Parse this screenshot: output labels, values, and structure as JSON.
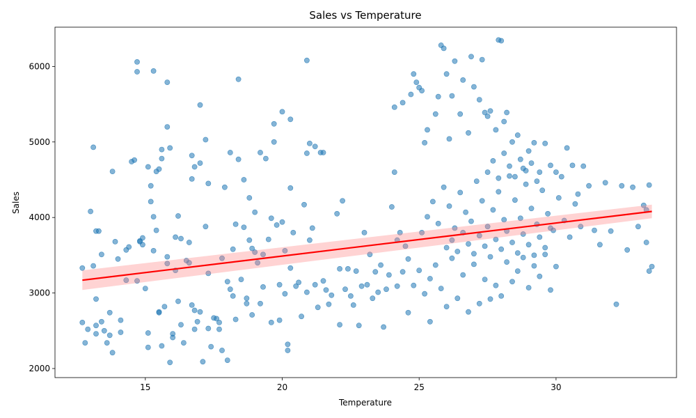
{
  "chart_data": {
    "type": "scatter",
    "title": "Sales vs Temperature",
    "xlabel": "Temperature",
    "ylabel": "Sales",
    "xlim": [
      11.7,
      34.4
    ],
    "ylim": [
      1880,
      6520
    ],
    "xticks": [
      15,
      20,
      25,
      30
    ],
    "yticks": [
      2000,
      3000,
      4000,
      5000,
      6000
    ],
    "grid": false,
    "legend": "none",
    "point_color": "#1f77b4",
    "point_alpha": 0.55,
    "regression": {
      "color": "#ff0000",
      "band_color": "#ff8080",
      "x_range": [
        12.7,
        33.5
      ],
      "y_start": 3170,
      "y_end": 4080,
      "ci_start": [
        3040,
        3300
      ],
      "ci_end": [
        3990,
        4170
      ]
    },
    "points": [
      [
        12.7,
        3330
      ],
      [
        12.8,
        2340
      ],
      [
        12.7,
        2610
      ],
      [
        12.9,
        2520
      ],
      [
        13.0,
        4080
      ],
      [
        13.1,
        4930
      ],
      [
        13.1,
        3360
      ],
      [
        13.2,
        2920
      ],
      [
        13.2,
        3820
      ],
      [
        13.2,
        2460
      ],
      [
        13.3,
        3820
      ],
      [
        13.2,
        2570
      ],
      [
        13.4,
        3510
      ],
      [
        13.4,
        2620
      ],
      [
        13.5,
        2500
      ],
      [
        13.6,
        2340
      ],
      [
        13.7,
        2440
      ],
      [
        13.7,
        2740
      ],
      [
        13.8,
        4610
      ],
      [
        13.8,
        2210
      ],
      [
        13.9,
        3680
      ],
      [
        14.0,
        3450
      ],
      [
        14.1,
        2640
      ],
      [
        14.1,
        2480
      ],
      [
        14.3,
        3570
      ],
      [
        14.3,
        3170
      ],
      [
        14.4,
        3610
      ],
      [
        14.5,
        4740
      ],
      [
        14.6,
        4760
      ],
      [
        14.7,
        3160
      ],
      [
        14.7,
        6060
      ],
      [
        14.7,
        5930
      ],
      [
        14.8,
        3690
      ],
      [
        14.8,
        3680
      ],
      [
        14.9,
        3640
      ],
      [
        14.9,
        3730
      ],
      [
        15.0,
        3060
      ],
      [
        15.1,
        4670
      ],
      [
        15.1,
        2470
      ],
      [
        15.1,
        2280
      ],
      [
        15.2,
        4420
      ],
      [
        15.2,
        4210
      ],
      [
        15.3,
        4010
      ],
      [
        15.3,
        3560
      ],
      [
        15.3,
        5940
      ],
      [
        15.4,
        4610
      ],
      [
        15.4,
        3830
      ],
      [
        15.5,
        2750
      ],
      [
        15.5,
        2740
      ],
      [
        15.5,
        4640
      ],
      [
        15.6,
        4900
      ],
      [
        15.6,
        4780
      ],
      [
        15.6,
        2300
      ],
      [
        15.7,
        2820
      ],
      [
        15.8,
        5790
      ],
      [
        15.8,
        5200
      ],
      [
        15.8,
        3480
      ],
      [
        15.8,
        3390
      ],
      [
        15.9,
        4920
      ],
      [
        15.9,
        2080
      ],
      [
        16.0,
        2460
      ],
      [
        16.0,
        2410
      ],
      [
        16.1,
        3300
      ],
      [
        16.1,
        3740
      ],
      [
        16.2,
        4020
      ],
      [
        16.2,
        2890
      ],
      [
        16.3,
        3720
      ],
      [
        16.3,
        2580
      ],
      [
        16.4,
        2340
      ],
      [
        16.5,
        3430
      ],
      [
        16.6,
        3400
      ],
      [
        16.6,
        3670
      ],
      [
        16.7,
        2840
      ],
      [
        16.7,
        4820
      ],
      [
        16.7,
        4510
      ],
      [
        16.8,
        4670
      ],
      [
        16.8,
        2770
      ],
      [
        16.8,
        2520
      ],
      [
        16.9,
        2620
      ],
      [
        17.0,
        4720
      ],
      [
        17.0,
        5490
      ],
      [
        17.0,
        2750
      ],
      [
        17.1,
        2090
      ],
      [
        17.2,
        3880
      ],
      [
        17.2,
        5030
      ],
      [
        17.3,
        4450
      ],
      [
        17.3,
        3260
      ],
      [
        17.3,
        2530
      ],
      [
        17.4,
        2290
      ],
      [
        17.5,
        2670
      ],
      [
        17.6,
        2660
      ],
      [
        17.7,
        2610
      ],
      [
        17.7,
        2520
      ],
      [
        17.8,
        3460
      ],
      [
        17.8,
        2240
      ],
      [
        17.9,
        4400
      ],
      [
        18.0,
        2110
      ],
      [
        18.0,
        3150
      ],
      [
        18.1,
        4860
      ],
      [
        18.1,
        3050
      ],
      [
        18.2,
        3580
      ],
      [
        18.2,
        2960
      ],
      [
        18.3,
        2650
      ],
      [
        18.3,
        3910
      ],
      [
        18.4,
        4770
      ],
      [
        18.4,
        5830
      ],
      [
        18.5,
        3180
      ],
      [
        18.6,
        3870
      ],
      [
        18.6,
        4500
      ],
      [
        18.7,
        2860
      ],
      [
        18.7,
        2930
      ],
      [
        18.8,
        3700
      ],
      [
        18.8,
        4260
      ],
      [
        18.9,
        2710
      ],
      [
        18.9,
        3590
      ],
      [
        19.0,
        4070
      ],
      [
        19.0,
        3540
      ],
      [
        19.1,
        3400
      ],
      [
        19.2,
        2860
      ],
      [
        19.2,
        4860
      ],
      [
        19.3,
        3080
      ],
      [
        19.3,
        3510
      ],
      [
        19.4,
        4780
      ],
      [
        19.5,
        3710
      ],
      [
        19.6,
        3990
      ],
      [
        19.6,
        2610
      ],
      [
        19.7,
        5000
      ],
      [
        19.7,
        5240
      ],
      [
        19.8,
        3900
      ],
      [
        19.9,
        3110
      ],
      [
        19.9,
        2640
      ],
      [
        20.0,
        3940
      ],
      [
        20.0,
        5400
      ],
      [
        20.1,
        3560
      ],
      [
        20.1,
        2990
      ],
      [
        20.2,
        2240
      ],
      [
        20.2,
        2320
      ],
      [
        20.3,
        3330
      ],
      [
        20.3,
        5300
      ],
      [
        20.3,
        4390
      ],
      [
        20.4,
        3800
      ],
      [
        20.5,
        3090
      ],
      [
        20.6,
        3140
      ],
      [
        20.7,
        2690
      ],
      [
        20.8,
        4170
      ],
      [
        20.9,
        3010
      ],
      [
        20.9,
        6080
      ],
      [
        20.9,
        4850
      ],
      [
        21.0,
        3700
      ],
      [
        21.0,
        4980
      ],
      [
        21.1,
        3860
      ],
      [
        21.2,
        3110
      ],
      [
        21.2,
        4940
      ],
      [
        21.3,
        2810
      ],
      [
        21.4,
        4860
      ],
      [
        21.5,
        4860
      ],
      [
        21.5,
        3160
      ],
      [
        21.6,
        3040
      ],
      [
        21.7,
        2850
      ],
      [
        21.8,
        2970
      ],
      [
        22.0,
        4050
      ],
      [
        22.1,
        2580
      ],
      [
        22.1,
        3320
      ],
      [
        22.2,
        4220
      ],
      [
        22.3,
        3050
      ],
      [
        22.4,
        3320
      ],
      [
        22.5,
        2960
      ],
      [
        22.6,
        2840
      ],
      [
        22.7,
        3290
      ],
      [
        22.8,
        2570
      ],
      [
        22.9,
        3090
      ],
      [
        23.0,
        3800
      ],
      [
        23.1,
        3110
      ],
      [
        23.2,
        3510
      ],
      [
        23.3,
        2930
      ],
      [
        23.4,
        3280
      ],
      [
        23.5,
        3010
      ],
      [
        23.6,
        3370
      ],
      [
        23.7,
        2550
      ],
      [
        23.8,
        3050
      ],
      [
        23.9,
        3240
      ],
      [
        24.0,
        4140
      ],
      [
        24.1,
        4600
      ],
      [
        24.1,
        5460
      ],
      [
        24.2,
        3700
      ],
      [
        24.3,
        3800
      ],
      [
        24.4,
        5520
      ],
      [
        24.5,
        3620
      ],
      [
        24.6,
        2740
      ],
      [
        24.7,
        5630
      ],
      [
        24.8,
        5900
      ],
      [
        24.9,
        5790
      ],
      [
        25.0,
        5720
      ],
      [
        25.1,
        5680
      ],
      [
        25.2,
        4990
      ],
      [
        25.3,
        5160
      ],
      [
        25.4,
        2620
      ],
      [
        25.6,
        5370
      ],
      [
        25.7,
        5600
      ],
      [
        25.8,
        6280
      ],
      [
        25.9,
        6240
      ],
      [
        26.0,
        5900
      ],
      [
        26.1,
        5040
      ],
      [
        26.2,
        5610
      ],
      [
        26.3,
        6070
      ],
      [
        26.5,
        5370
      ],
      [
        26.6,
        5820
      ],
      [
        26.8,
        5120
      ],
      [
        26.9,
        6130
      ],
      [
        27.0,
        5730
      ],
      [
        27.2,
        5560
      ],
      [
        27.3,
        6090
      ],
      [
        27.4,
        5390
      ],
      [
        27.5,
        5340
      ],
      [
        27.6,
        5410
      ],
      [
        27.8,
        5160
      ],
      [
        27.9,
        6350
      ],
      [
        28.0,
        6340
      ],
      [
        28.1,
        5270
      ],
      [
        28.2,
        5390
      ],
      [
        28.4,
        5000
      ],
      [
        28.6,
        5090
      ],
      [
        28.8,
        4650
      ],
      [
        29.0,
        4880
      ],
      [
        29.2,
        4990
      ],
      [
        29.4,
        4600
      ],
      [
        29.6,
        4980
      ],
      [
        29.8,
        4690
      ],
      [
        30.0,
        4600
      ],
      [
        30.2,
        4540
      ],
      [
        30.4,
        4920
      ],
      [
        30.6,
        4690
      ],
      [
        30.8,
        4310
      ],
      [
        31.0,
        4680
      ],
      [
        31.2,
        4420
      ],
      [
        31.4,
        3830
      ],
      [
        31.6,
        3640
      ],
      [
        31.8,
        4460
      ],
      [
        32.0,
        3820
      ],
      [
        32.2,
        2850
      ],
      [
        32.4,
        4420
      ],
      [
        32.6,
        3570
      ],
      [
        32.8,
        4400
      ],
      [
        33.0,
        3880
      ],
      [
        33.2,
        4160
      ],
      [
        33.3,
        3670
      ],
      [
        33.4,
        4430
      ],
      [
        33.5,
        3350
      ],
      [
        33.4,
        3290
      ],
      [
        33.3,
        4100
      ],
      [
        24.2,
        3090
      ],
      [
        24.4,
        3280
      ],
      [
        24.6,
        3450
      ],
      [
        24.8,
        3100
      ],
      [
        25.0,
        3300
      ],
      [
        25.2,
        2990
      ],
      [
        25.4,
        3190
      ],
      [
        25.6,
        3370
      ],
      [
        25.8,
        3060
      ],
      [
        26.0,
        2820
      ],
      [
        26.2,
        3460
      ],
      [
        26.4,
        2930
      ],
      [
        26.6,
        3240
      ],
      [
        26.8,
        2750
      ],
      [
        27.0,
        3380
      ],
      [
        27.2,
        2860
      ],
      [
        27.4,
        3180
      ],
      [
        27.6,
        2920
      ],
      [
        27.8,
        3100
      ],
      [
        28.0,
        2960
      ],
      [
        28.2,
        3410
      ],
      [
        28.4,
        3150
      ],
      [
        28.6,
        3290
      ],
      [
        28.8,
        3470
      ],
      [
        29.0,
        3070
      ],
      [
        29.2,
        3360
      ],
      [
        29.4,
        3220
      ],
      [
        29.6,
        3510
      ],
      [
        29.8,
        3040
      ],
      [
        30.0,
        3350
      ],
      [
        25.1,
        3800
      ],
      [
        25.3,
        4010
      ],
      [
        25.5,
        4210
      ],
      [
        25.7,
        3920
      ],
      [
        25.9,
        4400
      ],
      [
        26.1,
        4150
      ],
      [
        26.3,
        3860
      ],
      [
        26.5,
        4330
      ],
      [
        26.7,
        4070
      ],
      [
        26.9,
        3950
      ],
      [
        27.1,
        4480
      ],
      [
        27.3,
        4220
      ],
      [
        27.5,
        3880
      ],
      [
        27.7,
        4100
      ],
      [
        27.9,
        4340
      ],
      [
        28.1,
        3970
      ],
      [
        28.3,
        4550
      ],
      [
        28.5,
        4230
      ],
      [
        28.7,
        3990
      ],
      [
        28.9,
        4440
      ],
      [
        29.1,
        4120
      ],
      [
        29.3,
        3910
      ],
      [
        29.5,
        4360
      ],
      [
        29.7,
        4050
      ],
      [
        29.9,
        3830
      ],
      [
        30.1,
        4260
      ],
      [
        30.3,
        3960
      ],
      [
        30.5,
        3740
      ],
      [
        30.7,
        4180
      ],
      [
        30.9,
        3880
      ],
      [
        26.0,
        3600
      ],
      [
        26.2,
        3700
      ],
      [
        26.4,
        3550
      ],
      [
        26.6,
        3800
      ],
      [
        26.8,
        3650
      ],
      [
        27.0,
        3520
      ],
      [
        27.2,
        3760
      ],
      [
        27.4,
        3620
      ],
      [
        27.6,
        3480
      ],
      [
        27.8,
        3710
      ],
      [
        28.0,
        3580
      ],
      [
        28.2,
        3820
      ],
      [
        28.4,
        3670
      ],
      [
        28.6,
        3530
      ],
      [
        28.8,
        3780
      ],
      [
        29.0,
        3640
      ],
      [
        29.2,
        3500
      ],
      [
        29.4,
        3740
      ],
      [
        29.6,
        3600
      ],
      [
        29.8,
        3860
      ],
      [
        27.5,
        4600
      ],
      [
        27.7,
        4750
      ],
      [
        27.9,
        4520
      ],
      [
        28.1,
        4850
      ],
      [
        28.3,
        4680
      ],
      [
        28.5,
        4540
      ],
      [
        28.7,
        4770
      ],
      [
        28.9,
        4620
      ],
      [
        29.1,
        4720
      ],
      [
        29.3,
        4480
      ]
    ]
  }
}
